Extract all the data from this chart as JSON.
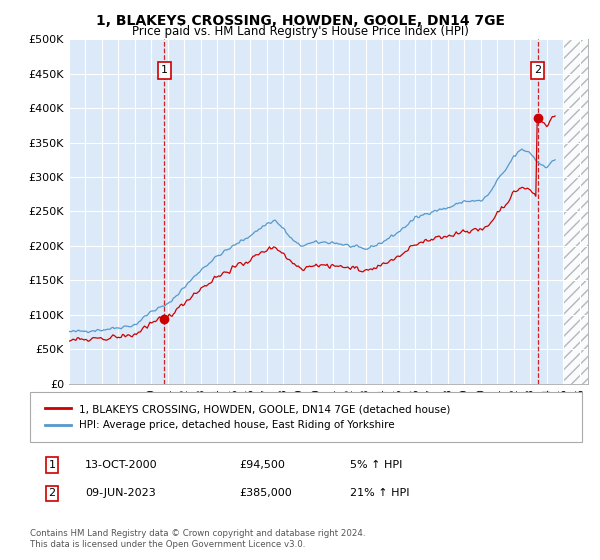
{
  "title": "1, BLAKEYS CROSSING, HOWDEN, GOOLE, DN14 7GE",
  "subtitle": "Price paid vs. HM Land Registry's House Price Index (HPI)",
  "ylabel_ticks": [
    "£0",
    "£50K",
    "£100K",
    "£150K",
    "£200K",
    "£250K",
    "£300K",
    "£350K",
    "£400K",
    "£450K",
    "£500K"
  ],
  "ytick_values": [
    0,
    50000,
    100000,
    150000,
    200000,
    250000,
    300000,
    350000,
    400000,
    450000,
    500000
  ],
  "xlim_start": 1995.0,
  "xlim_end": 2026.5,
  "ylim": [
    0,
    500000
  ],
  "hpi_color": "#5599cc",
  "price_color": "#cc0000",
  "sale1_x": 2000.79,
  "sale1_y": 94500,
  "sale2_x": 2023.44,
  "sale2_y": 385000,
  "annotation1_label": "1",
  "annotation2_label": "2",
  "legend_line1": "1, BLAKEYS CROSSING, HOWDEN, GOOLE, DN14 7GE (detached house)",
  "legend_line2": "HPI: Average price, detached house, East Riding of Yorkshire",
  "footnote": "Contains HM Land Registry data © Crown copyright and database right 2024.\nThis data is licensed under the Open Government Licence v3.0.",
  "bg_color": "#dce9f8",
  "grid_color": "#ffffff",
  "vline_color": "#cc0000",
  "hatch_start": 2025.0
}
